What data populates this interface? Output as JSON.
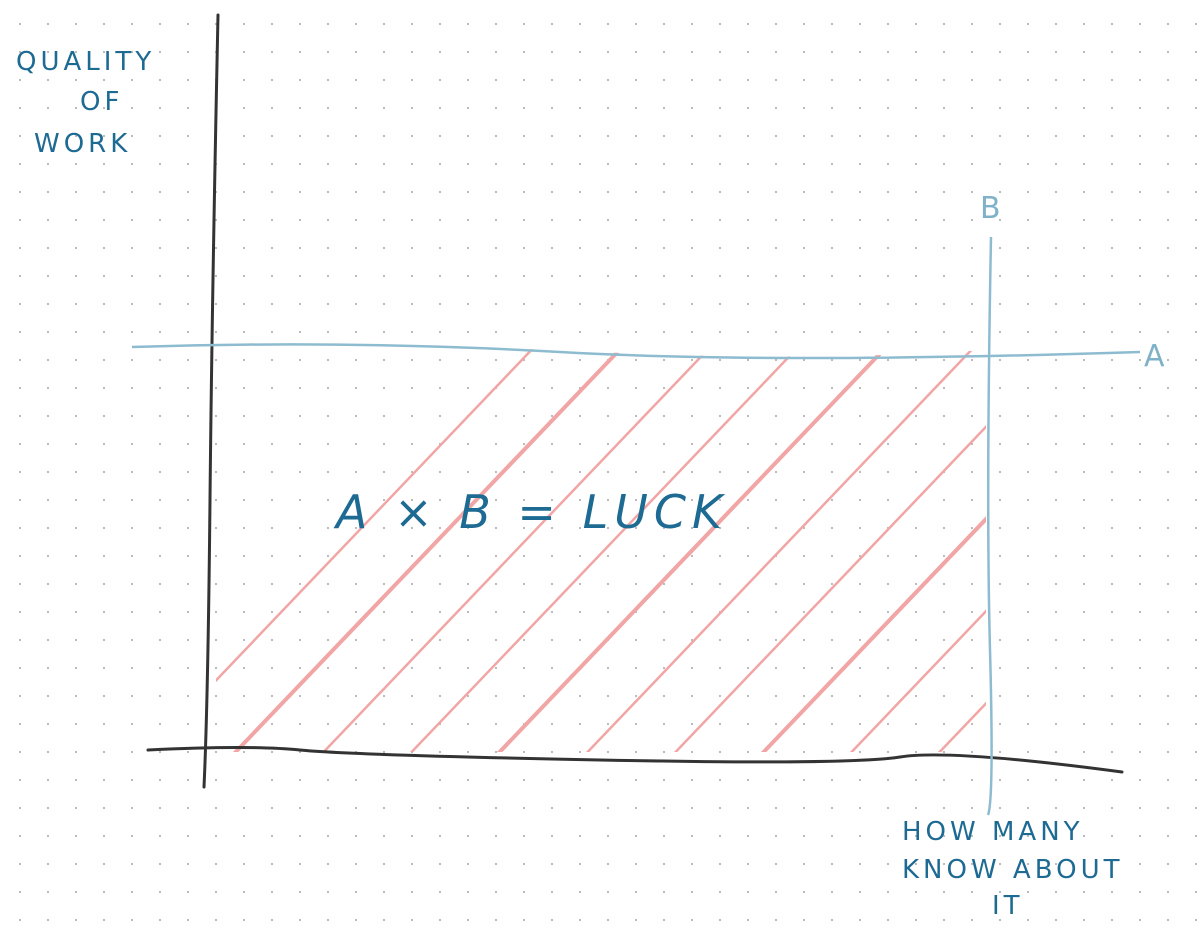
{
  "y_axis_label": {
    "lines": [
      "QUALITY",
      "OF",
      "WORK"
    ]
  },
  "x_axis_label": {
    "lines": [
      "HOW MANY",
      "KNOW ABOUT",
      "IT"
    ]
  },
  "line_a": {
    "label": "A"
  },
  "line_b": {
    "label": "B"
  },
  "area": {
    "label": "A × B = LUCK"
  }
}
